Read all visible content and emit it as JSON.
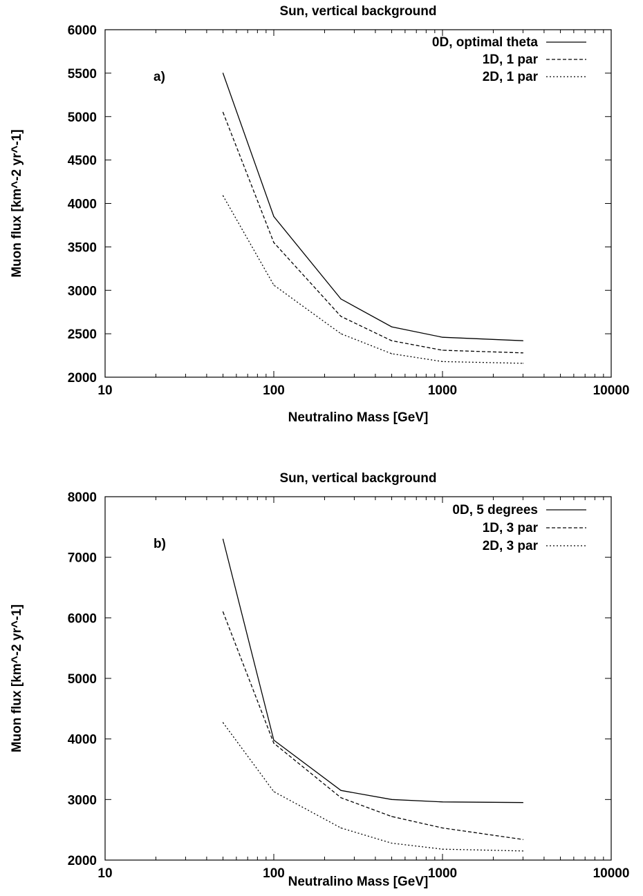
{
  "chart_data": [
    {
      "type": "line",
      "title": "Sun, vertical background",
      "xlabel": "Neutralino Mass [GeV]",
      "ylabel": "Muon flux [km^-2 yr^-1]",
      "panel_label": "a)",
      "x_scale": "log",
      "xlim": [
        10,
        10000
      ],
      "ylim": [
        2000,
        6000
      ],
      "x_ticks": [
        "10",
        "100",
        "1000",
        "10000"
      ],
      "y_ticks": [
        "2000",
        "2500",
        "3000",
        "3500",
        "4000",
        "4500",
        "5000",
        "5500",
        "6000"
      ],
      "legend_position": "top-right",
      "x": [
        50,
        100,
        250,
        500,
        1000,
        3000
      ],
      "series": [
        {
          "name": "0D, optimal theta",
          "dash": "solid",
          "values": [
            5500,
            3850,
            2900,
            2580,
            2460,
            2420
          ]
        },
        {
          "name": "1D, 1 par",
          "dash": "dashed",
          "values": [
            5050,
            3550,
            2700,
            2420,
            2310,
            2280
          ]
        },
        {
          "name": "2D, 1 par",
          "dash": "dotted",
          "values": [
            4090,
            3060,
            2500,
            2270,
            2180,
            2160
          ]
        }
      ]
    },
    {
      "type": "line",
      "title": "Sun, vertical background",
      "xlabel": "Neutralino Mass [GeV]",
      "ylabel": "Muon flux [km^-2 yr^-1]",
      "panel_label": "b)",
      "x_scale": "log",
      "xlim": [
        10,
        10000
      ],
      "ylim": [
        2000,
        8000
      ],
      "x_ticks": [
        "10",
        "100",
        "1000",
        "10000"
      ],
      "y_ticks": [
        "2000",
        "3000",
        "4000",
        "5000",
        "6000",
        "7000",
        "8000"
      ],
      "legend_position": "top-right",
      "x": [
        50,
        100,
        250,
        500,
        1000,
        3000
      ],
      "series": [
        {
          "name": "0D, 5 degrees",
          "dash": "solid",
          "values": [
            7300,
            3980,
            3150,
            3000,
            2960,
            2950
          ]
        },
        {
          "name": "1D, 3 par",
          "dash": "dashed",
          "values": [
            6100,
            3930,
            3030,
            2720,
            2530,
            2340
          ]
        },
        {
          "name": "2D, 3 par",
          "dash": "dotted",
          "values": [
            4270,
            3130,
            2530,
            2280,
            2180,
            2150
          ]
        }
      ]
    }
  ]
}
